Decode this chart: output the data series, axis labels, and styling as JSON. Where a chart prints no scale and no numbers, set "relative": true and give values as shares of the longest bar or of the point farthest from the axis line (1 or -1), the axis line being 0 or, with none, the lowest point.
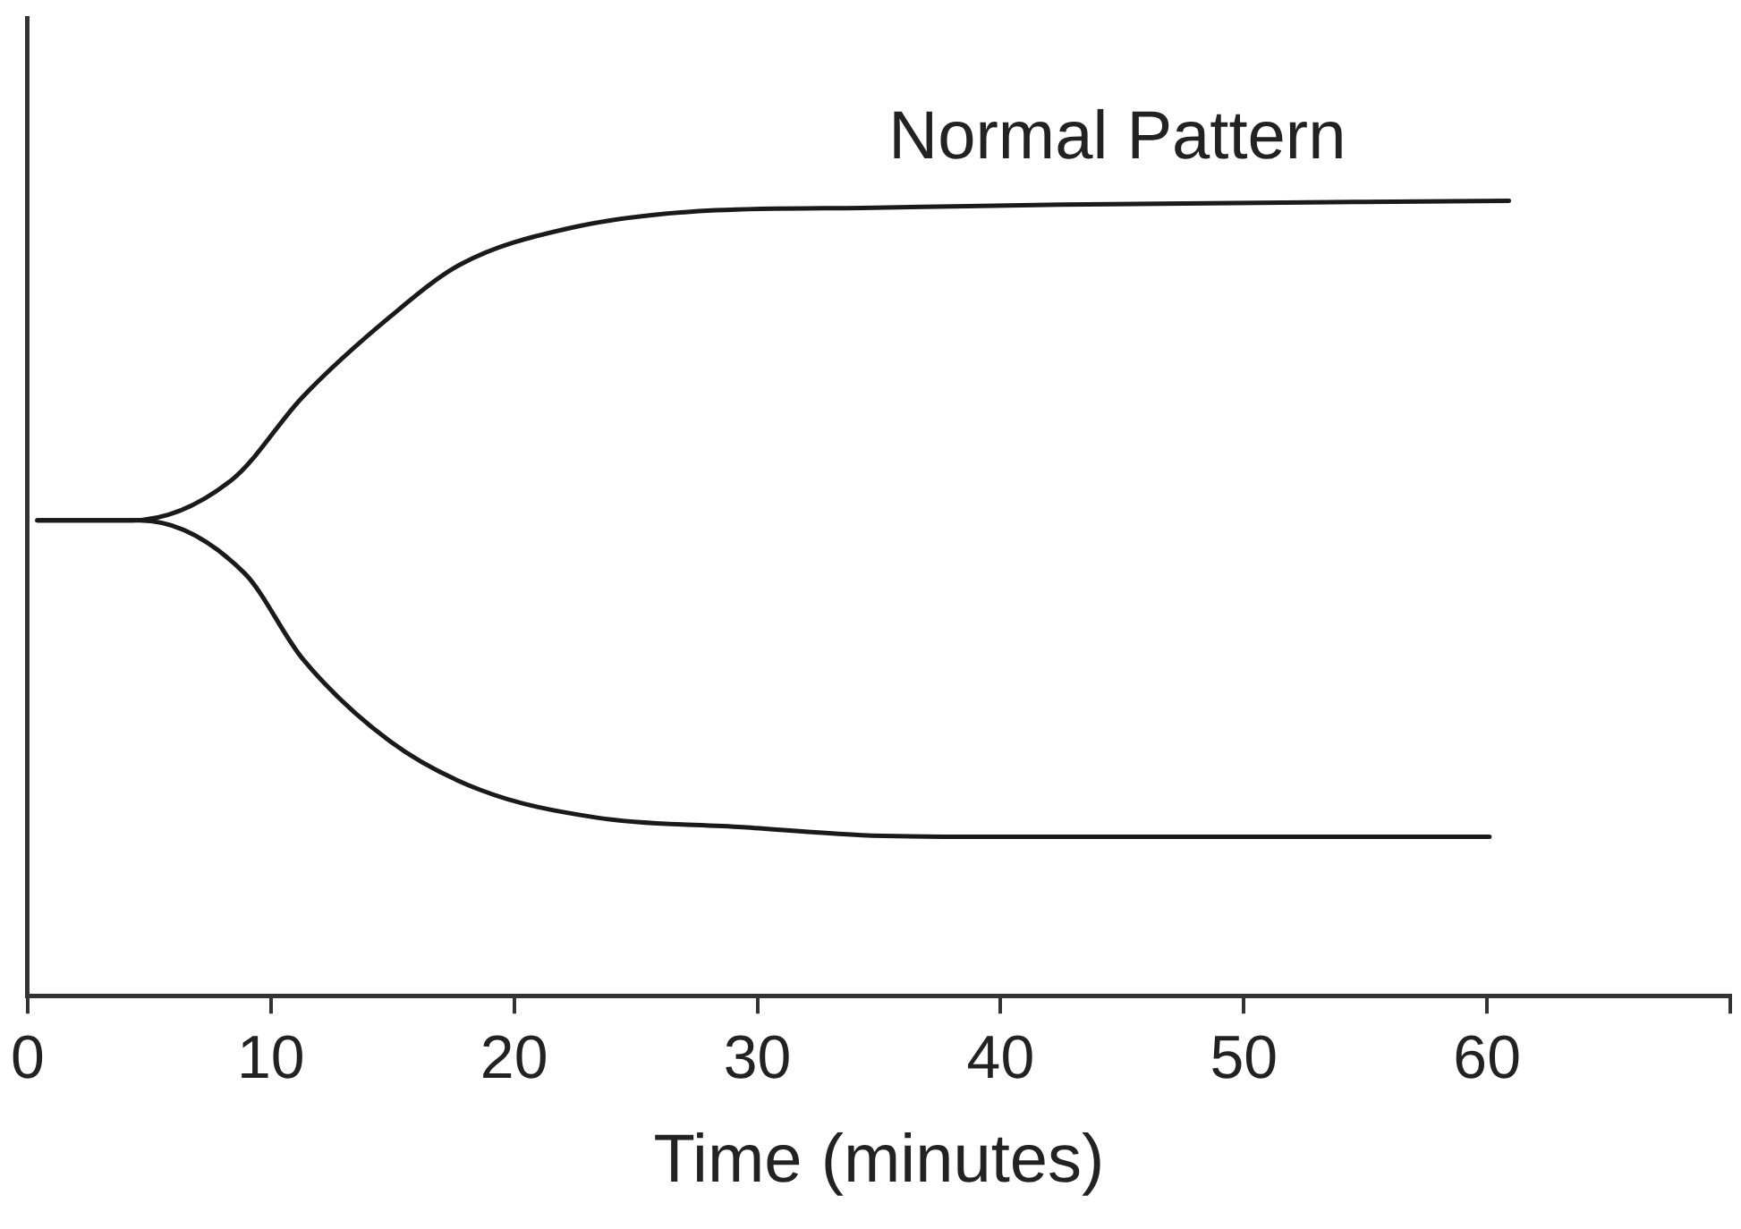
{
  "chart_data": {
    "type": "line",
    "relative": true,
    "xlabel": "Time (minutes)",
    "annotations": [
      "Normal Pattern"
    ],
    "xlim": [
      0,
      70
    ],
    "xticks": [
      0,
      10,
      20,
      30,
      40,
      50,
      60,
      {
        "value": 70,
        "label": null
      }
    ],
    "grid": false,
    "legend": false,
    "marker": "none",
    "line_style": "solid",
    "series": [
      {
        "color": "#1a1a1a",
        "x": [
          0.4,
          4.3,
          8.4,
          11.3,
          14.9,
          17.8,
          22.2,
          28.3,
          34.3,
          42.5,
          60.9
        ],
        "values": [
          0.598,
          0.598,
          0.649,
          0.753,
          0.854,
          0.92,
          0.965,
          0.988,
          0.991,
          0.995,
          1
        ]
      },
      {
        "color": "#1a1a1a",
        "x": [
          0.4,
          4.6,
          8.9,
          11.3,
          14.9,
          18.6,
          23.4,
          29.4,
          34.3,
          39.3,
          60.1
        ],
        "values": [
          0.598,
          0.598,
          0.532,
          0.424,
          0.32,
          0.259,
          0.224,
          0.212,
          0.202,
          0.2,
          0.2
        ]
      }
    ]
  }
}
